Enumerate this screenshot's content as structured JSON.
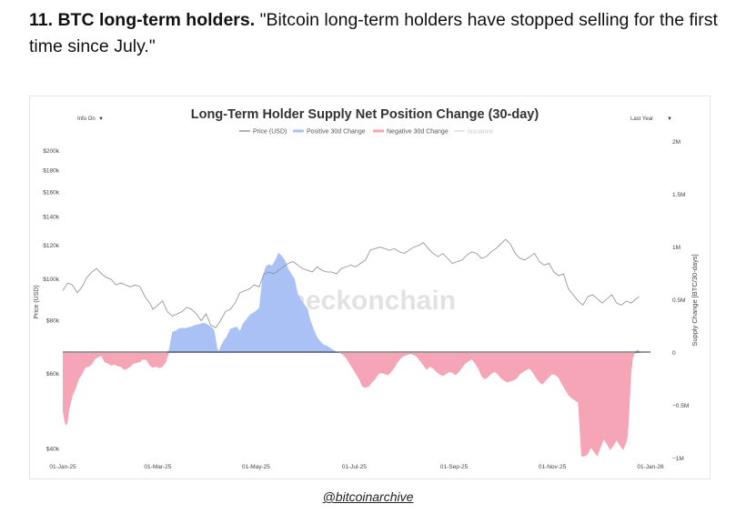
{
  "headline": {
    "number": "11.",
    "bold": "BTC long-term holders.",
    "quote": "\"Bitcoin long-term holders have stopped selling for the first time since July.\""
  },
  "footer": {
    "handle": "@bitcoinarchive"
  },
  "chart_data": {
    "type": "area",
    "title": "Long-Term Holder Supply Net Position Change (30-day)",
    "controls": {
      "info": "Info On",
      "range": "Last Year",
      "caret": "▼"
    },
    "watermark": "checkonchain",
    "legend": [
      {
        "name": "Price (USD)",
        "color": "#9a9a9a"
      },
      {
        "name": "Positive 30d Change",
        "color": "#a9c1f5"
      },
      {
        "name": "Negative 30d Change",
        "color": "#f5a5b5"
      },
      {
        "name": "Issuance",
        "color": "#dddddd"
      }
    ],
    "ylabel_left": "Price (USD)",
    "ylabel_right": "Supply Change [BTC/30-days]",
    "left_axis": {
      "scale": "log",
      "range": [
        38000,
        210000
      ],
      "ticks": [
        {
          "v": 200000,
          "label": "$200k"
        },
        {
          "v": 180000,
          "label": "$180k"
        },
        {
          "v": 160000,
          "label": "$160k"
        },
        {
          "v": 140000,
          "label": "$140k"
        },
        {
          "v": 120000,
          "label": "$120k"
        },
        {
          "v": 100000,
          "label": "$100k"
        },
        {
          "v": 80000,
          "label": "$80k"
        },
        {
          "v": 60000,
          "label": "$60k"
        },
        {
          "v": 40000,
          "label": "$40k"
        }
      ]
    },
    "right_axis": {
      "range": [
        -1000000,
        2000000
      ],
      "ticks": [
        {
          "v": 2000000,
          "label": "2M"
        },
        {
          "v": 1500000,
          "label": "1.5M"
        },
        {
          "v": 1000000,
          "label": "1M"
        },
        {
          "v": 500000,
          "label": "0.5M"
        },
        {
          "v": 0,
          "label": "0"
        },
        {
          "v": -500000,
          "label": "−0.5M"
        },
        {
          "v": -1000000,
          "label": "−1M"
        }
      ]
    },
    "x_range": [
      0,
      365
    ],
    "x_ticks": [
      {
        "d": 0,
        "label": "01-Jan-25"
      },
      {
        "d": 59,
        "label": "01-Mar-25"
      },
      {
        "d": 120,
        "label": "01-May-25"
      },
      {
        "d": 181,
        "label": "01-Jul-25"
      },
      {
        "d": 243,
        "label": "01-Sep-25"
      },
      {
        "d": 304,
        "label": "01-Nov-25"
      },
      {
        "d": 365,
        "label": "01-Jan-26"
      }
    ],
    "price": [
      [
        0,
        94000
      ],
      [
        3,
        98000
      ],
      [
        6,
        97000
      ],
      [
        9,
        93000
      ],
      [
        12,
        96000
      ],
      [
        15,
        101000
      ],
      [
        18,
        104000
      ],
      [
        21,
        106000
      ],
      [
        24,
        103000
      ],
      [
        27,
        101000
      ],
      [
        30,
        100000
      ],
      [
        33,
        97000
      ],
      [
        36,
        98000
      ],
      [
        39,
        97000
      ],
      [
        42,
        96000
      ],
      [
        45,
        97000
      ],
      [
        48,
        96000
      ],
      [
        51,
        91000
      ],
      [
        54,
        88000
      ],
      [
        56,
        85000
      ],
      [
        59,
        87000
      ],
      [
        62,
        89000
      ],
      [
        65,
        84000
      ],
      [
        68,
        82000
      ],
      [
        71,
        83000
      ],
      [
        74,
        84000
      ],
      [
        77,
        86000
      ],
      [
        80,
        85000
      ],
      [
        83,
        83000
      ],
      [
        86,
        80000
      ],
      [
        89,
        83000
      ],
      [
        92,
        78000
      ],
      [
        95,
        77000
      ],
      [
        98,
        80000
      ],
      [
        101,
        84000
      ],
      [
        104,
        85000
      ],
      [
        107,
        88000
      ],
      [
        110,
        93000
      ],
      [
        113,
        94000
      ],
      [
        116,
        95000
      ],
      [
        119,
        97000
      ],
      [
        122,
        96000
      ],
      [
        125,
        103000
      ],
      [
        128,
        104000
      ],
      [
        131,
        103000
      ],
      [
        134,
        105000
      ],
      [
        137,
        107000
      ],
      [
        140,
        109000
      ],
      [
        143,
        110000
      ],
      [
        146,
        108000
      ],
      [
        149,
        106000
      ],
      [
        152,
        105000
      ],
      [
        155,
        104000
      ],
      [
        158,
        107000
      ],
      [
        161,
        105000
      ],
      [
        164,
        104000
      ],
      [
        167,
        104000
      ],
      [
        170,
        103000
      ],
      [
        173,
        106000
      ],
      [
        176,
        107000
      ],
      [
        179,
        108000
      ],
      [
        182,
        107000
      ],
      [
        185,
        109000
      ],
      [
        188,
        111000
      ],
      [
        191,
        117000
      ],
      [
        194,
        118000
      ],
      [
        197,
        119000
      ],
      [
        200,
        118000
      ],
      [
        203,
        117000
      ],
      [
        206,
        118000
      ],
      [
        209,
        116000
      ],
      [
        212,
        115000
      ],
      [
        215,
        117000
      ],
      [
        218,
        119000
      ],
      [
        221,
        120000
      ],
      [
        224,
        122000
      ],
      [
        227,
        118000
      ],
      [
        230,
        115000
      ],
      [
        233,
        113000
      ],
      [
        236,
        115000
      ],
      [
        239,
        112000
      ],
      [
        242,
        109000
      ],
      [
        245,
        110000
      ],
      [
        248,
        111000
      ],
      [
        251,
        114000
      ],
      [
        254,
        116000
      ],
      [
        257,
        115000
      ],
      [
        260,
        112000
      ],
      [
        263,
        113000
      ],
      [
        266,
        116000
      ],
      [
        269,
        118000
      ],
      [
        272,
        121000
      ],
      [
        275,
        124000
      ],
      [
        278,
        121000
      ],
      [
        281,
        115000
      ],
      [
        284,
        112000
      ],
      [
        287,
        111000
      ],
      [
        290,
        113000
      ],
      [
        293,
        115000
      ],
      [
        296,
        110000
      ],
      [
        299,
        108000
      ],
      [
        302,
        109000
      ],
      [
        305,
        104000
      ],
      [
        308,
        102000
      ],
      [
        311,
        103000
      ],
      [
        314,
        95000
      ],
      [
        317,
        92000
      ],
      [
        320,
        89000
      ],
      [
        323,
        87000
      ],
      [
        326,
        91000
      ],
      [
        329,
        92000
      ],
      [
        332,
        90000
      ],
      [
        335,
        88000
      ],
      [
        338,
        90000
      ],
      [
        341,
        92000
      ],
      [
        344,
        88000
      ],
      [
        347,
        87000
      ],
      [
        350,
        89000
      ],
      [
        353,
        88000
      ],
      [
        356,
        90000
      ],
      [
        358,
        91000
      ]
    ],
    "supply_change": [
      [
        0,
        -550000
      ],
      [
        1,
        -650000
      ],
      [
        2,
        -690000
      ],
      [
        3,
        -660000
      ],
      [
        4,
        -540000
      ],
      [
        6,
        -410000
      ],
      [
        8,
        -340000
      ],
      [
        10,
        -250000
      ],
      [
        12,
        -200000
      ],
      [
        14,
        -140000
      ],
      [
        16,
        -130000
      ],
      [
        18,
        -110000
      ],
      [
        20,
        -60000
      ],
      [
        22,
        -40000
      ],
      [
        24,
        -30000
      ],
      [
        26,
        -90000
      ],
      [
        28,
        -100000
      ],
      [
        30,
        -120000
      ],
      [
        32,
        -110000
      ],
      [
        34,
        -125000
      ],
      [
        36,
        -130000
      ],
      [
        38,
        -160000
      ],
      [
        40,
        -150000
      ],
      [
        42,
        -130000
      ],
      [
        44,
        -100000
      ],
      [
        46,
        -95000
      ],
      [
        48,
        -85000
      ],
      [
        50,
        -60000
      ],
      [
        52,
        -70000
      ],
      [
        54,
        -120000
      ],
      [
        56,
        -140000
      ],
      [
        58,
        -130000
      ],
      [
        60,
        -145000
      ],
      [
        62,
        -130000
      ],
      [
        64,
        -90000
      ],
      [
        66,
        30000
      ],
      [
        67,
        120000
      ],
      [
        68,
        200000
      ],
      [
        70,
        210000
      ],
      [
        72,
        230000
      ],
      [
        74,
        240000
      ],
      [
        76,
        235000
      ],
      [
        78,
        245000
      ],
      [
        80,
        250000
      ],
      [
        82,
        265000
      ],
      [
        84,
        270000
      ],
      [
        86,
        280000
      ],
      [
        88,
        285000
      ],
      [
        90,
        270000
      ],
      [
        92,
        250000
      ],
      [
        94,
        220000
      ],
      [
        95,
        140000
      ],
      [
        96,
        40000
      ],
      [
        97,
        20000
      ],
      [
        98,
        60000
      ],
      [
        100,
        120000
      ],
      [
        102,
        160000
      ],
      [
        104,
        230000
      ],
      [
        106,
        240000
      ],
      [
        108,
        250000
      ],
      [
        110,
        210000
      ],
      [
        112,
        280000
      ],
      [
        114,
        320000
      ],
      [
        116,
        360000
      ],
      [
        118,
        380000
      ],
      [
        120,
        400000
      ],
      [
        122,
        430000
      ],
      [
        124,
        720000
      ],
      [
        126,
        820000
      ],
      [
        128,
        840000
      ],
      [
        130,
        830000
      ],
      [
        132,
        880000
      ],
      [
        134,
        950000
      ],
      [
        136,
        920000
      ],
      [
        138,
        880000
      ],
      [
        140,
        800000
      ],
      [
        142,
        750000
      ],
      [
        144,
        700000
      ],
      [
        146,
        560000
      ],
      [
        148,
        500000
      ],
      [
        150,
        460000
      ],
      [
        152,
        420000
      ],
      [
        154,
        300000
      ],
      [
        156,
        220000
      ],
      [
        158,
        150000
      ],
      [
        160,
        110000
      ],
      [
        162,
        80000
      ],
      [
        164,
        70000
      ],
      [
        166,
        50000
      ],
      [
        168,
        30000
      ],
      [
        170,
        10000
      ],
      [
        172,
        0
      ],
      [
        174,
        -20000
      ],
      [
        176,
        -50000
      ],
      [
        178,
        -100000
      ],
      [
        180,
        -150000
      ],
      [
        182,
        -200000
      ],
      [
        184,
        -250000
      ],
      [
        186,
        -320000
      ],
      [
        188,
        -330000
      ],
      [
        190,
        -320000
      ],
      [
        192,
        -280000
      ],
      [
        194,
        -250000
      ],
      [
        196,
        -200000
      ],
      [
        198,
        -190000
      ],
      [
        200,
        -200000
      ],
      [
        202,
        -210000
      ],
      [
        204,
        -180000
      ],
      [
        206,
        -140000
      ],
      [
        208,
        -90000
      ],
      [
        210,
        -50000
      ],
      [
        212,
        -30000
      ],
      [
        214,
        -20000
      ],
      [
        216,
        -10000
      ],
      [
        218,
        -20000
      ],
      [
        220,
        -40000
      ],
      [
        222,
        -80000
      ],
      [
        224,
        -120000
      ],
      [
        226,
        -160000
      ],
      [
        228,
        -130000
      ],
      [
        230,
        -150000
      ],
      [
        232,
        -180000
      ],
      [
        234,
        -200000
      ],
      [
        236,
        -220000
      ],
      [
        238,
        -200000
      ],
      [
        240,
        -180000
      ],
      [
        242,
        -190000
      ],
      [
        244,
        -210000
      ],
      [
        246,
        -180000
      ],
      [
        248,
        -140000
      ],
      [
        250,
        -100000
      ],
      [
        252,
        -80000
      ],
      [
        254,
        -60000
      ],
      [
        256,
        -100000
      ],
      [
        258,
        -150000
      ],
      [
        260,
        -220000
      ],
      [
        262,
        -250000
      ],
      [
        264,
        -230000
      ],
      [
        266,
        -200000
      ],
      [
        268,
        -180000
      ],
      [
        270,
        -200000
      ],
      [
        272,
        -240000
      ],
      [
        274,
        -260000
      ],
      [
        276,
        -280000
      ],
      [
        278,
        -270000
      ],
      [
        280,
        -260000
      ],
      [
        282,
        -240000
      ],
      [
        284,
        -200000
      ],
      [
        286,
        -180000
      ],
      [
        288,
        -160000
      ],
      [
        290,
        -150000
      ],
      [
        292,
        -190000
      ],
      [
        294,
        -240000
      ],
      [
        296,
        -280000
      ],
      [
        298,
        -300000
      ],
      [
        300,
        -260000
      ],
      [
        302,
        -230000
      ],
      [
        304,
        -200000
      ],
      [
        306,
        -210000
      ],
      [
        308,
        -240000
      ],
      [
        310,
        -300000
      ],
      [
        312,
        -350000
      ],
      [
        314,
        -400000
      ],
      [
        316,
        -430000
      ],
      [
        318,
        -450000
      ],
      [
        320,
        -470000
      ],
      [
        322,
        -980000
      ],
      [
        324,
        -980000
      ],
      [
        326,
        -960000
      ],
      [
        328,
        -900000
      ],
      [
        330,
        -940000
      ],
      [
        332,
        -980000
      ],
      [
        334,
        -900000
      ],
      [
        336,
        -820000
      ],
      [
        338,
        -870000
      ],
      [
        340,
        -920000
      ],
      [
        342,
        -880000
      ],
      [
        344,
        -830000
      ],
      [
        346,
        -880000
      ],
      [
        348,
        -920000
      ],
      [
        350,
        -850000
      ],
      [
        351,
        -780000
      ],
      [
        352,
        -500000
      ],
      [
        353,
        -200000
      ],
      [
        354,
        -60000
      ],
      [
        355,
        -10000
      ],
      [
        356,
        20000
      ],
      [
        357,
        30000
      ],
      [
        358,
        20000
      ],
      [
        359,
        0
      ]
    ]
  }
}
